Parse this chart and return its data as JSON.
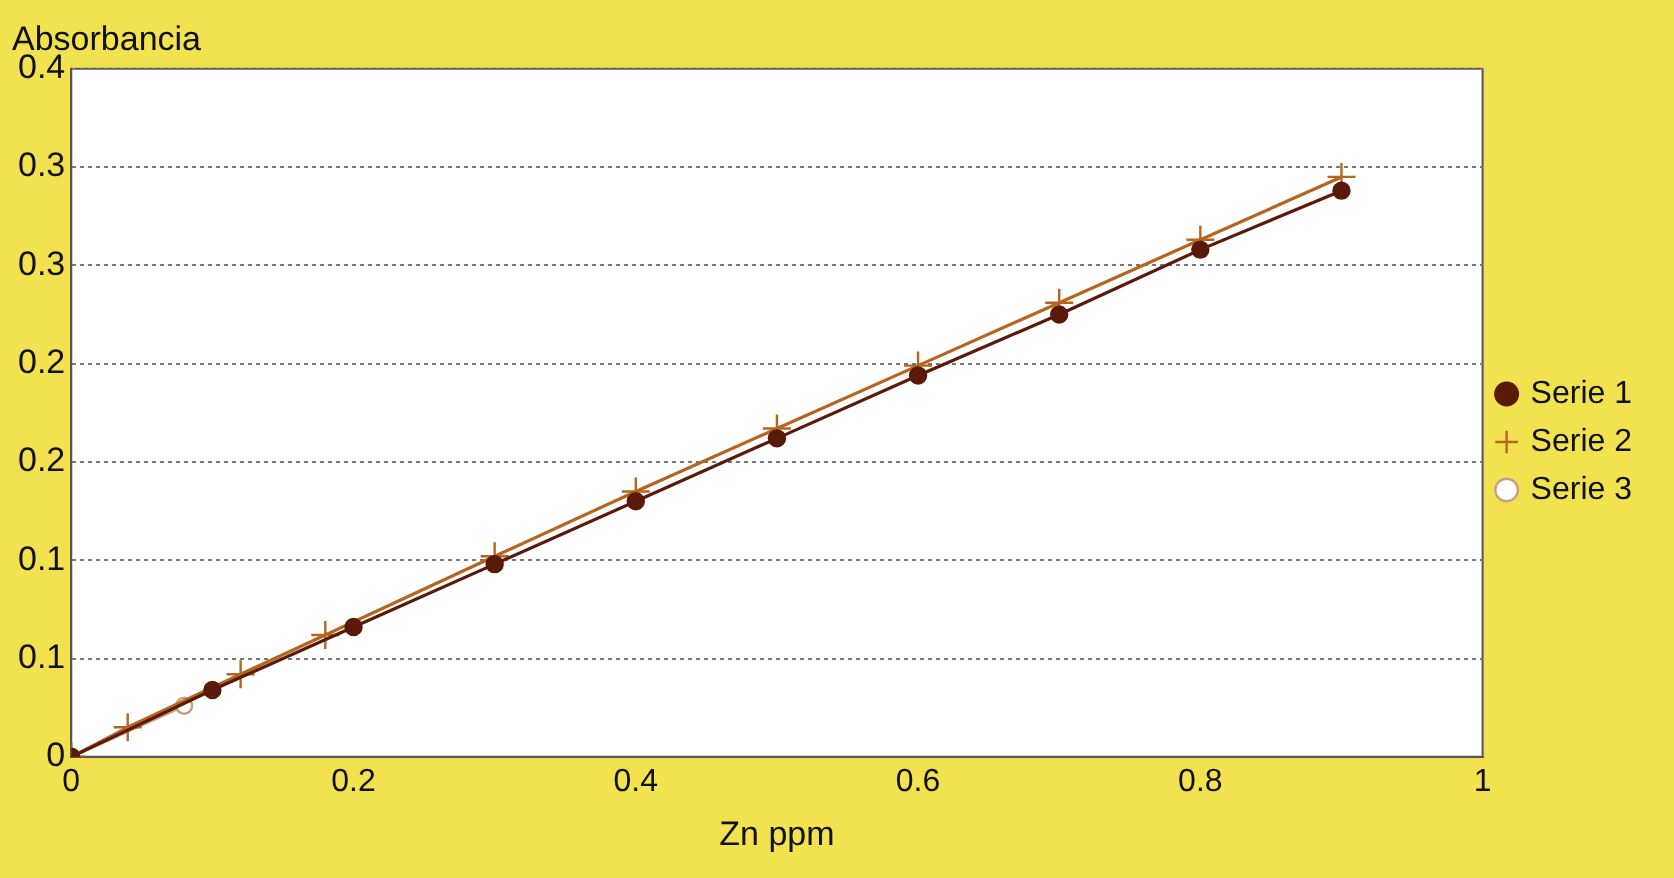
{
  "chart_data": {
    "type": "line",
    "xlabel": "Zn ppm",
    "ylabel": "Absorbancia",
    "xlim": [
      0,
      1
    ],
    "xticks": [
      0,
      0.2,
      0.4,
      0.6,
      0.8,
      1
    ],
    "ylim": [
      0,
      0.35
    ],
    "yticks": [
      0,
      {
        "value": 0.05,
        "label": "0.1"
      },
      {
        "value": 0.1,
        "label": "0.1"
      },
      {
        "value": 0.15,
        "label": "0.2"
      },
      {
        "value": 0.2,
        "label": "0.2"
      },
      {
        "value": 0.25,
        "label": "0.3"
      },
      {
        "value": 0.3,
        "label": "0.3"
      },
      {
        "value": 0.35,
        "label": "0.4"
      }
    ],
    "grid": "y",
    "legend": "right",
    "line_style": "solid",
    "series": [
      {
        "name": "Serie 1",
        "color": "#5a1a0a",
        "marker": "circle",
        "x": [
          0,
          0.1,
          0.2,
          0.3,
          0.4,
          0.5,
          0.6,
          0.7,
          0.8,
          0.9
        ],
        "values": [
          0,
          0.034,
          0.066,
          0.098,
          0.13,
          0.162,
          0.194,
          0.225,
          0.258,
          0.288
        ]
      },
      {
        "name": "Serie 2",
        "color": "#b5651d",
        "marker": "cross",
        "x": [
          0,
          0.04,
          0.12,
          0.18,
          0.3,
          0.4,
          0.5,
          0.6,
          0.7,
          0.8,
          0.9
        ],
        "values": [
          0,
          0.015,
          0.042,
          0.062,
          0.102,
          0.135,
          0.167,
          0.199,
          0.231,
          0.263,
          0.295
        ]
      },
      {
        "name": "Serie 3",
        "color": "#c8a080",
        "marker": "circle",
        "x": [
          0,
          0.08
        ],
        "values": [
          0,
          0.026
        ]
      }
    ]
  }
}
